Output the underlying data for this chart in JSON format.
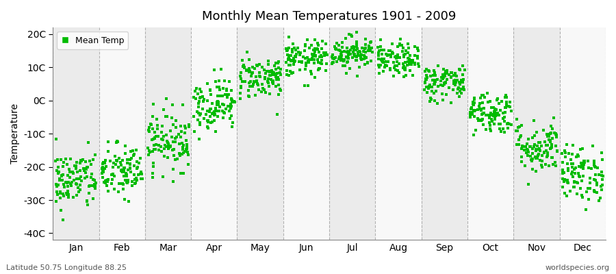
{
  "title": "Monthly Mean Temperatures 1901 - 2009",
  "ylabel": "Temperature",
  "xlabel_bottom_left": "Latitude 50.75 Longitude 88.25",
  "xlabel_bottom_right": "worldspecies.org",
  "legend_label": "Mean Temp",
  "dot_color": "#00bb00",
  "background_color": "#ffffff",
  "band_colors": [
    "#ebebeb",
    "#f8f8f8"
  ],
  "ytick_labels": [
    "20C",
    "10C",
    "0C",
    "-10C",
    "-20C",
    "-30C",
    "-40C"
  ],
  "ytick_values": [
    20,
    10,
    0,
    -10,
    -20,
    -30,
    -40
  ],
  "ylim": [
    -42,
    22
  ],
  "months": [
    "Jan",
    "Feb",
    "Mar",
    "Apr",
    "May",
    "Jun",
    "Jul",
    "Aug",
    "Sep",
    "Oct",
    "Nov",
    "Dec"
  ],
  "month_means": [
    -24.0,
    -21.5,
    -12.0,
    -1.0,
    7.0,
    12.5,
    14.5,
    12.0,
    5.5,
    -3.5,
    -14.0,
    -22.0
  ],
  "month_stds": [
    4.5,
    4.2,
    4.5,
    4.0,
    3.2,
    2.8,
    2.5,
    2.5,
    2.8,
    3.2,
    4.0,
    4.2
  ],
  "n_years": 109,
  "seed": 42,
  "dot_size": 5
}
